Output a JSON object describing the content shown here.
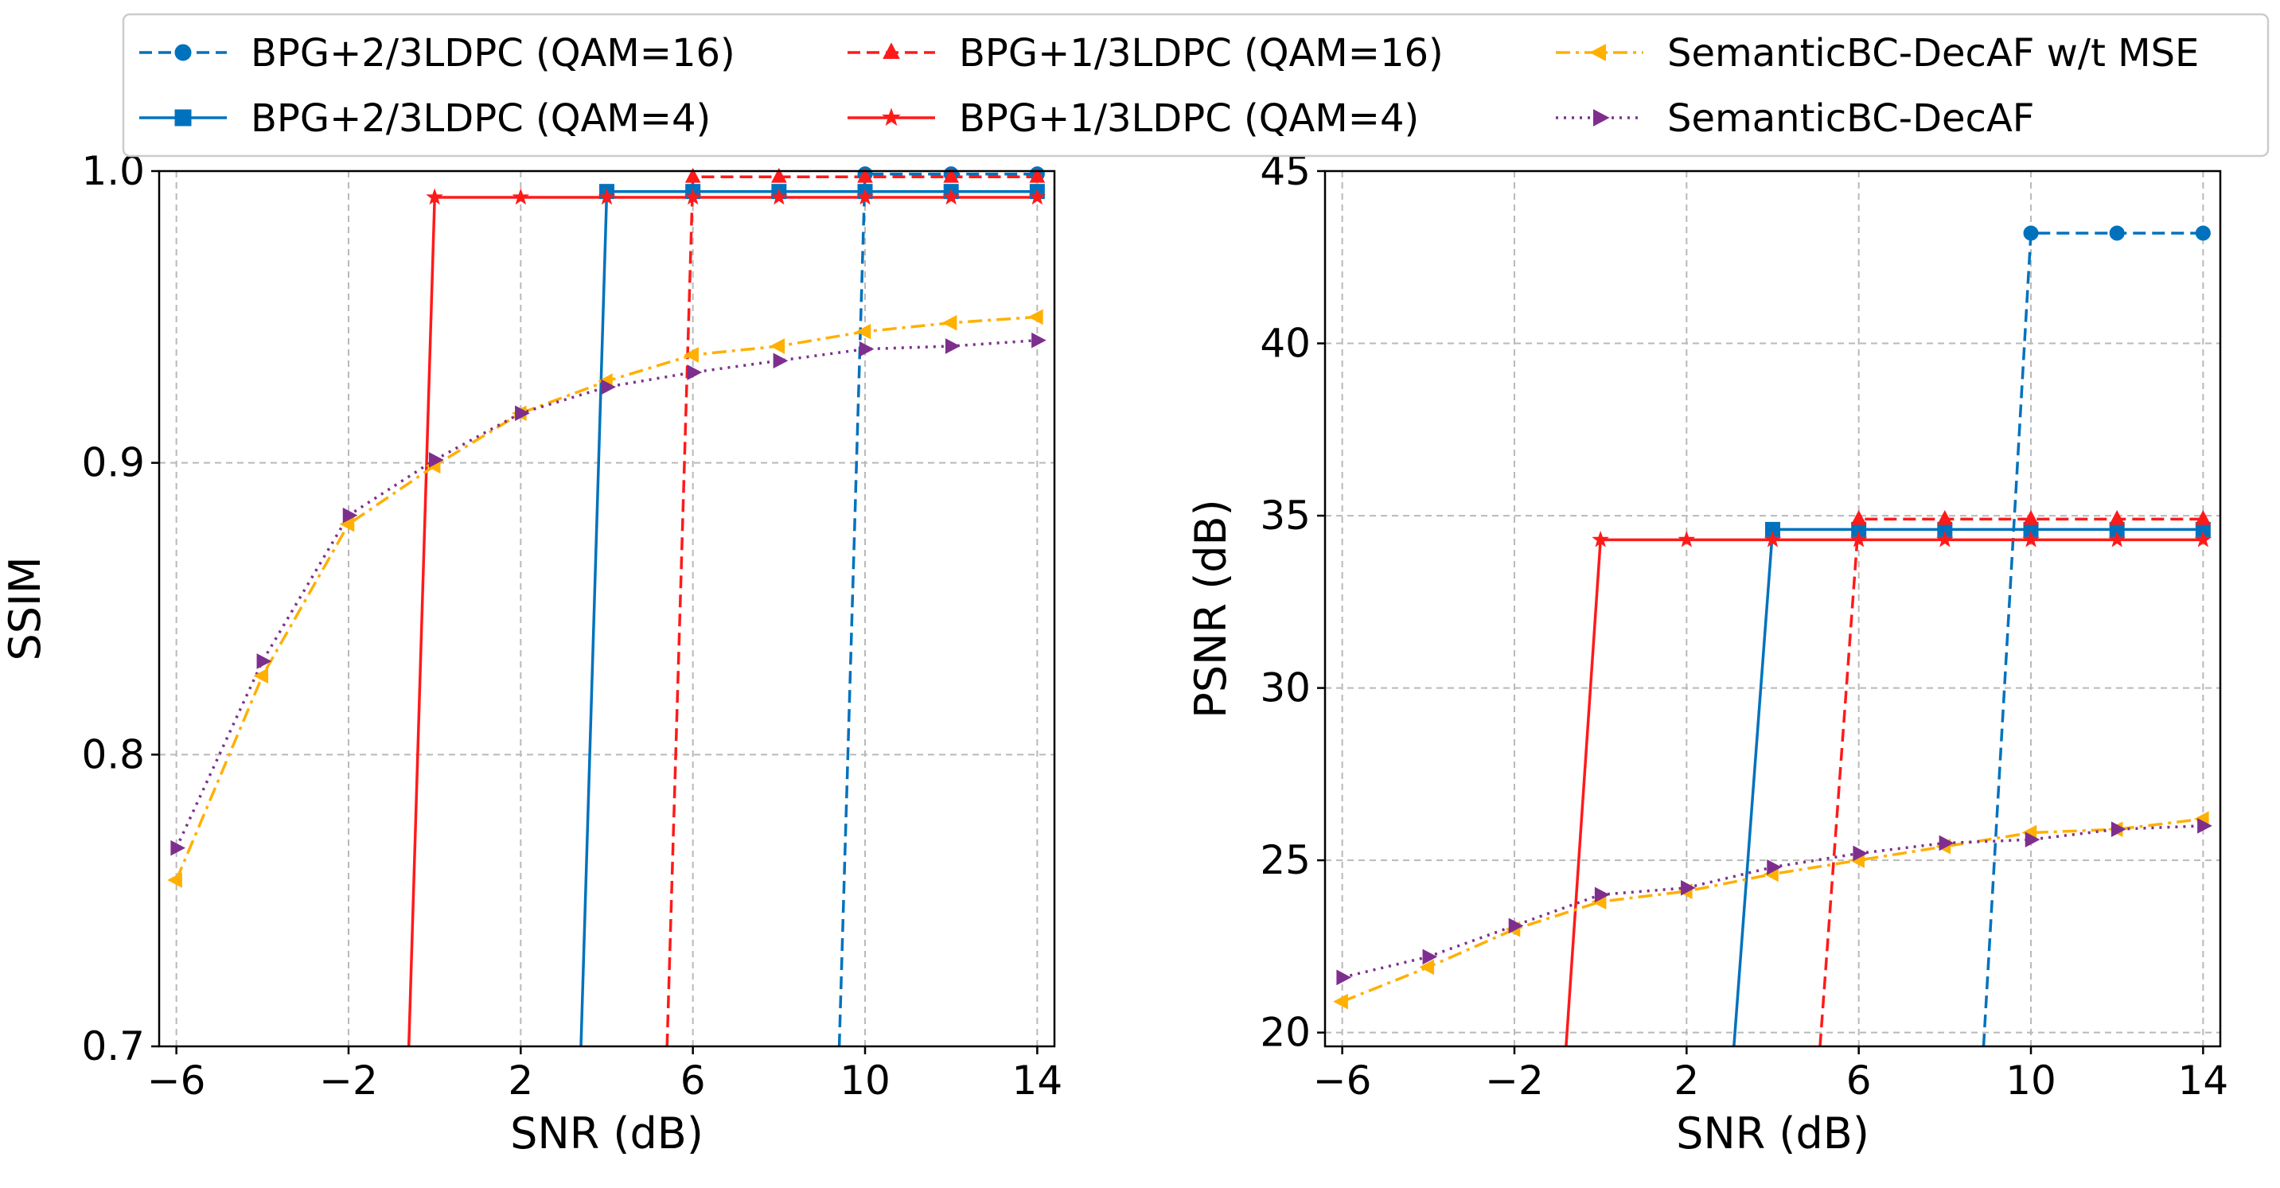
{
  "chart_data": [
    {
      "type": "line",
      "xlabel": "SNR (dB)",
      "ylabel": "SSIM",
      "xlim": [
        -6.4,
        14.4
      ],
      "ylim": [
        0.7,
        1.0
      ],
      "xticks": [
        "−6",
        "−2",
        "2",
        "6",
        "10",
        "14"
      ],
      "xtick_values": [
        -6,
        -2,
        2,
        6,
        10,
        14
      ],
      "yticks": [
        "0.7",
        "0.8",
        "0.9",
        "1.0"
      ],
      "ytick_values": [
        0.7,
        0.8,
        0.9,
        1.0
      ],
      "grid": true,
      "series": [
        {
          "name": "BPG+2/3LDPC (QAM=16)",
          "color": "#0072BD",
          "dash": "dashed",
          "marker": "circle",
          "x": [
            9.4,
            10,
            12,
            14
          ],
          "y": [
            0.7,
            0.999,
            0.999,
            0.999
          ]
        },
        {
          "name": "BPG+2/3LDPC (QAM=4)",
          "color": "#0072BD",
          "dash": "solid",
          "marker": "square",
          "x": [
            3.4,
            4,
            6,
            8,
            10,
            12,
            14
          ],
          "y": [
            0.7,
            0.993,
            0.993,
            0.993,
            0.993,
            0.993,
            0.993
          ]
        },
        {
          "name": "BPG+1/3LDPC (QAM=16)",
          "color": "#FF1A1A",
          "dash": "dashed",
          "marker": "triangle",
          "x": [
            5.4,
            6,
            8,
            10,
            12,
            14
          ],
          "y": [
            0.7,
            0.998,
            0.998,
            0.998,
            0.998,
            0.998
          ]
        },
        {
          "name": "BPG+1/3LDPC (QAM=4)",
          "color": "#FF1A1A",
          "dash": "solid",
          "marker": "star",
          "x": [
            -0.6,
            0,
            2,
            4,
            6,
            8,
            10,
            12,
            14
          ],
          "y": [
            0.7,
            0.991,
            0.991,
            0.991,
            0.991,
            0.991,
            0.991,
            0.991,
            0.991
          ]
        },
        {
          "name": "SemanticBC-DecAF w/t MSE",
          "color": "#FFB000",
          "dash": "dashdot",
          "marker": "triangle-left",
          "x": [
            -6,
            -4,
            -2,
            0,
            2,
            4,
            6,
            8,
            10,
            12,
            14
          ],
          "y": [
            0.757,
            0.827,
            0.879,
            0.899,
            0.917,
            0.928,
            0.937,
            0.94,
            0.945,
            0.948,
            0.95
          ]
        },
        {
          "name": "SemanticBC-DecAF",
          "color": "#7E2F8E",
          "dash": "dotted",
          "marker": "triangle-right",
          "x": [
            -6,
            -4,
            -2,
            0,
            2,
            4,
            6,
            8,
            10,
            12,
            14
          ],
          "y": [
            0.768,
            0.832,
            0.882,
            0.901,
            0.917,
            0.926,
            0.931,
            0.935,
            0.939,
            0.94,
            0.942
          ]
        }
      ]
    },
    {
      "type": "line",
      "xlabel": "SNR (dB)",
      "ylabel": "PSNR (dB)",
      "xlim": [
        -6.4,
        14.4
      ],
      "ylim": [
        19.6,
        45.0
      ],
      "xticks": [
        "−6",
        "−2",
        "2",
        "6",
        "10",
        "14"
      ],
      "xtick_values": [
        -6,
        -2,
        2,
        6,
        10,
        14
      ],
      "yticks": [
        "20",
        "25",
        "30",
        "35",
        "40",
        "45"
      ],
      "ytick_values": [
        20,
        25,
        30,
        35,
        40,
        45
      ],
      "grid": true,
      "series": [
        {
          "name": "BPG+2/3LDPC (QAM=16)",
          "color": "#0072BD",
          "dash": "dashed",
          "marker": "circle",
          "x": [
            8.9,
            10,
            12,
            14
          ],
          "y": [
            19.6,
            43.2,
            43.2,
            43.2
          ]
        },
        {
          "name": "BPG+2/3LDPC (QAM=4)",
          "color": "#0072BD",
          "dash": "solid",
          "marker": "square",
          "x": [
            3.1,
            4,
            6,
            8,
            10,
            12,
            14
          ],
          "y": [
            19.6,
            34.6,
            34.6,
            34.6,
            34.6,
            34.6,
            34.6
          ]
        },
        {
          "name": "BPG+1/3LDPC (QAM=16)",
          "color": "#FF1A1A",
          "dash": "dashed",
          "marker": "triangle",
          "x": [
            5.1,
            6,
            8,
            10,
            12,
            14
          ],
          "y": [
            19.6,
            34.9,
            34.9,
            34.9,
            34.9,
            34.9
          ]
        },
        {
          "name": "BPG+1/3LDPC (QAM=4)",
          "color": "#FF1A1A",
          "dash": "solid",
          "marker": "star",
          "x": [
            -0.8,
            0,
            2,
            4,
            6,
            8,
            10,
            12,
            14
          ],
          "y": [
            19.6,
            34.3,
            34.3,
            34.3,
            34.3,
            34.3,
            34.3,
            34.3,
            34.3
          ]
        },
        {
          "name": "SemanticBC-DecAF w/t MSE",
          "color": "#FFB000",
          "dash": "dashdot",
          "marker": "triangle-left",
          "x": [
            -6,
            -4,
            -2,
            0,
            2,
            4,
            6,
            8,
            10,
            12,
            14
          ],
          "y": [
            20.9,
            21.9,
            23.0,
            23.8,
            24.1,
            24.6,
            25.0,
            25.4,
            25.8,
            25.9,
            26.2
          ]
        },
        {
          "name": "SemanticBC-DecAF",
          "color": "#7E2F8E",
          "dash": "dotted",
          "marker": "triangle-right",
          "x": [
            -6,
            -4,
            -2,
            0,
            2,
            4,
            6,
            8,
            10,
            12,
            14
          ],
          "y": [
            21.6,
            22.2,
            23.1,
            24.0,
            24.2,
            24.8,
            25.2,
            25.5,
            25.6,
            25.9,
            26.0
          ]
        }
      ]
    }
  ],
  "legend": {
    "placement": "top",
    "columns": 3,
    "items": [
      {
        "label": "BPG+2/3LDPC (QAM=16)",
        "color": "#0072BD",
        "dash": "dashed",
        "marker": "circle"
      },
      {
        "label": "BPG+2/3LDPC (QAM=4)",
        "color": "#0072BD",
        "dash": "solid",
        "marker": "square"
      },
      {
        "label": "BPG+1/3LDPC (QAM=16)",
        "color": "#FF1A1A",
        "dash": "dashed",
        "marker": "triangle"
      },
      {
        "label": "BPG+1/3LDPC (QAM=4)",
        "color": "#FF1A1A",
        "dash": "solid",
        "marker": "star"
      },
      {
        "label": "SemanticBC-DecAF w/t MSE",
        "color": "#FFB000",
        "dash": "dashdot",
        "marker": "triangle-left"
      },
      {
        "label": "SemanticBC-DecAF",
        "color": "#7E2F8E",
        "dash": "dotted",
        "marker": "triangle-right"
      }
    ]
  }
}
